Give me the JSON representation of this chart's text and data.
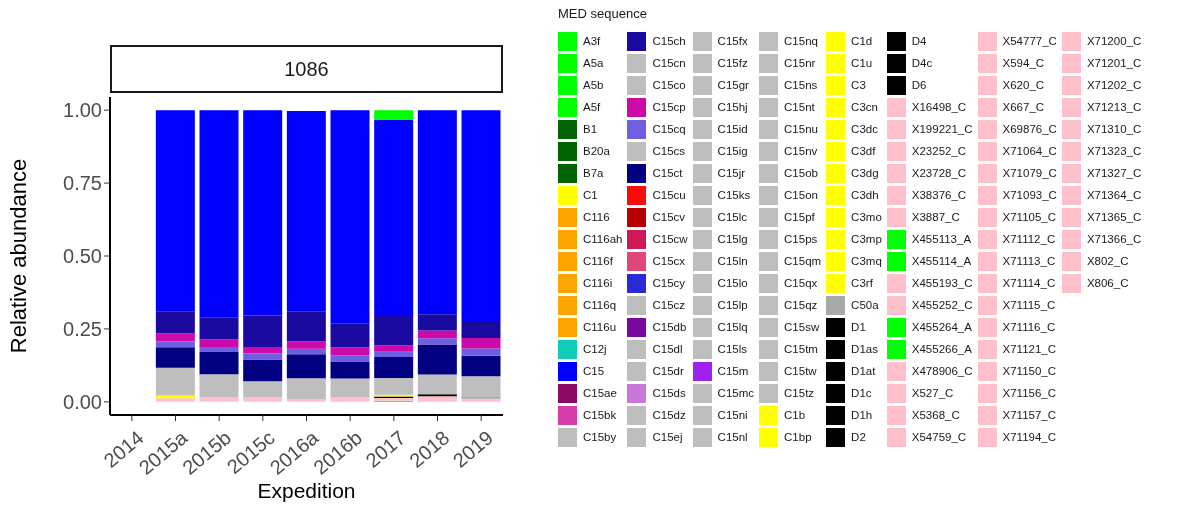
{
  "chart_data": {
    "type": "bar",
    "title": "1086",
    "xlabel": "Expedition",
    "ylabel": "Relative abundance",
    "legend_title": "MED sequence",
    "legend": "right",
    "stacked": true,
    "categories": [
      "2014",
      "2015a",
      "2015b",
      "2015c",
      "2016a",
      "2016b",
      "2017",
      "2018",
      "2019"
    ],
    "ylim": [
      -0.045,
      1.045
    ],
    "yticks": [
      {
        "value": 0,
        "label": "0.00"
      },
      0.25,
      {
        "value": 0.5,
        "label": "0.50"
      },
      0.75,
      {
        "value": 1,
        "label": "1.00"
      }
    ],
    "series": [
      {
        "name": "X806_C",
        "color": "#ffc0cb",
        "values": [
          null,
          null,
          null,
          null,
          null,
          null,
          null,
          null,
          null
        ]
      },
      {
        "name": "X802_C",
        "color": "#ffc0cb",
        "values": [
          null,
          null,
          null,
          null,
          null,
          null,
          null,
          null,
          null
        ]
      },
      {
        "name": "X71366_C",
        "color": "#ffc0cb",
        "values": [
          null,
          null,
          null,
          null,
          null,
          null,
          null,
          null,
          null
        ]
      },
      {
        "name": "X71365_C",
        "color": "#ffc0cb",
        "values": [
          null,
          null,
          null,
          null,
          null,
          null,
          null,
          null,
          null
        ]
      },
      {
        "name": "X71364_C",
        "color": "#ffc0cb",
        "values": [
          null,
          null,
          null,
          null,
          null,
          null,
          null,
          null,
          null
        ]
      },
      {
        "name": "X71327_C",
        "color": "#ffc0cb",
        "values": [
          null,
          null,
          null,
          null,
          null,
          null,
          null,
          null,
          null
        ]
      },
      {
        "name": "X71323_C",
        "color": "#ffc0cb",
        "values": [
          null,
          null,
          null,
          null,
          null,
          null,
          null,
          null,
          null
        ]
      },
      {
        "name": "X71310_C",
        "color": "#ffc0cb",
        "values": [
          null,
          null,
          null,
          null,
          null,
          null,
          null,
          null,
          null
        ]
      },
      {
        "name": "X71213_C",
        "color": "#ffc0cb",
        "values": [
          null,
          null,
          null,
          null,
          null,
          null,
          null,
          null,
          null
        ]
      },
      {
        "name": "X71202_C",
        "color": "#ffc0cb",
        "values": [
          null,
          null,
          null,
          null,
          null,
          null,
          null,
          null,
          null
        ]
      },
      {
        "name": "X71201_C",
        "color": "#ffc0cb",
        "values": [
          null,
          null,
          null,
          null,
          null,
          null,
          null,
          null,
          null
        ]
      },
      {
        "name": "X71200_C",
        "color": "#ffc0cb",
        "values": [
          null,
          null,
          null,
          null,
          null,
          null,
          null,
          null,
          null
        ]
      },
      {
        "name": "X71194_C",
        "color": "#ffc0cb",
        "values": [
          null,
          null,
          null,
          null,
          null,
          null,
          null,
          null,
          null
        ]
      },
      {
        "name": "X71157_C",
        "color": "#ffc0cb",
        "values": [
          null,
          null,
          null,
          null,
          null,
          null,
          null,
          null,
          null
        ]
      },
      {
        "name": "X71156_C",
        "color": "#ffc0cb",
        "values": [
          null,
          null,
          null,
          null,
          null,
          null,
          null,
          null,
          null
        ]
      },
      {
        "name": "X71150_C",
        "color": "#ffc0cb",
        "values": [
          null,
          null,
          null,
          null,
          null,
          null,
          null,
          null,
          null
        ]
      },
      {
        "name": "X71121_C",
        "color": "#ffc0cb",
        "values": [
          null,
          null,
          null,
          null,
          null,
          null,
          null,
          null,
          null
        ]
      },
      {
        "name": "X71116_C",
        "color": "#ffc0cb",
        "values": [
          null,
          null,
          null,
          null,
          null,
          null,
          null,
          null,
          null
        ]
      },
      {
        "name": "X71115_C",
        "color": "#ffc0cb",
        "values": [
          null,
          null,
          null,
          null,
          null,
          null,
          null,
          null,
          null
        ]
      },
      {
        "name": "X71114_C",
        "color": "#ffc0cb",
        "values": [
          null,
          null,
          null,
          null,
          null,
          null,
          null,
          null,
          null
        ]
      },
      {
        "name": "X71113_C",
        "color": "#ffc0cb",
        "values": [
          null,
          null,
          null,
          null,
          null,
          null,
          null,
          null,
          null
        ]
      },
      {
        "name": "X71112_C",
        "color": "#ffc0cb",
        "values": [
          null,
          null,
          null,
          null,
          null,
          null,
          null,
          null,
          null
        ]
      },
      {
        "name": "X71105_C",
        "color": "#ffc0cb",
        "values": [
          null,
          null,
          null,
          null,
          null,
          null,
          null,
          null,
          null
        ]
      },
      {
        "name": "X71093_C",
        "color": "#ffc0cb",
        "values": [
          null,
          null,
          null,
          null,
          null,
          null,
          null,
          null,
          null
        ]
      },
      {
        "name": "X71079_C",
        "color": "#ffc0cb",
        "values": [
          null,
          null,
          null,
          null,
          null,
          null,
          null,
          null,
          null
        ]
      },
      {
        "name": "X71064_C",
        "color": "#ffc0cb",
        "values": [
          null,
          null,
          null,
          null,
          null,
          null,
          null,
          null,
          null
        ]
      },
      {
        "name": "X69876_C",
        "color": "#ffc0cb",
        "values": [
          null,
          null,
          null,
          null,
          null,
          null,
          null,
          null,
          null
        ]
      },
      {
        "name": "X667_C",
        "color": "#ffc0cb",
        "values": [
          null,
          null,
          null,
          null,
          null,
          null,
          null,
          null,
          null
        ]
      },
      {
        "name": "X620_C",
        "color": "#ffc0cb",
        "values": [
          null,
          null,
          null,
          null,
          null,
          null,
          null,
          null,
          null
        ]
      },
      {
        "name": "X594_C",
        "color": "#ffc0cb",
        "values": [
          null,
          null,
          null,
          null,
          null,
          null,
          null,
          null,
          null
        ]
      },
      {
        "name": "X54777_C",
        "color": "#ffc0cb",
        "values": [
          null,
          null,
          null,
          null,
          null,
          null,
          null,
          null,
          null
        ]
      },
      {
        "name": "X54759_C",
        "color": "#ffc0cb",
        "values": [
          null,
          null,
          null,
          null,
          null,
          null,
          null,
          null,
          null
        ]
      },
      {
        "name": "X5368_C",
        "color": "#ffc0cb",
        "values": [
          null,
          null,
          null,
          null,
          null,
          null,
          null,
          null,
          null
        ]
      },
      {
        "name": "X527_C",
        "color": "#ffc0cb",
        "values": [
          null,
          null,
          null,
          null,
          null,
          null,
          null,
          null,
          null
        ]
      },
      {
        "name": "X478906_C",
        "color": "#ffc0cb",
        "values": [
          null,
          null,
          null,
          null,
          null,
          null,
          null,
          null,
          null
        ]
      },
      {
        "name": "X455266_A",
        "color": "#00ff00",
        "values": [
          null,
          null,
          null,
          null,
          null,
          null,
          null,
          null,
          null
        ]
      },
      {
        "name": "X455264_A",
        "color": "#00ff00",
        "values": [
          null,
          null,
          null,
          null,
          null,
          null,
          null,
          null,
          null
        ]
      },
      {
        "name": "X455252_C",
        "color": "#ffc0cb",
        "values": [
          null,
          null,
          null,
          null,
          null,
          null,
          null,
          null,
          null
        ]
      },
      {
        "name": "X455193_C",
        "color": "#ffc0cb",
        "values": [
          null,
          null,
          null,
          null,
          null,
          null,
          null,
          null,
          null
        ]
      },
      {
        "name": "X455114_A",
        "color": "#00ff00",
        "values": [
          null,
          null,
          null,
          null,
          null,
          null,
          null,
          null,
          null
        ]
      },
      {
        "name": "X455113_A",
        "color": "#00ff00",
        "values": [
          null,
          null,
          null,
          null,
          null,
          null,
          0.004,
          null,
          null
        ]
      },
      {
        "name": "X3887_C",
        "color": "#ffc0cb",
        "values": [
          null,
          null,
          null,
          null,
          null,
          null,
          null,
          null,
          null
        ]
      },
      {
        "name": "X38376_C",
        "color": "#ffc0cb",
        "values": [
          null,
          null,
          null,
          null,
          null,
          null,
          null,
          null,
          null
        ]
      },
      {
        "name": "X23728_C",
        "color": "#ffc0cb",
        "values": [
          null,
          null,
          null,
          null,
          null,
          null,
          null,
          null,
          null
        ]
      },
      {
        "name": "X23252_C",
        "color": "#ffc0cb",
        "values": [
          null,
          null,
          null,
          null,
          null,
          null,
          null,
          null,
          null
        ]
      },
      {
        "name": "X199221_C",
        "color": "#ffc0cb",
        "values": [
          null,
          null,
          null,
          null,
          null,
          null,
          null,
          null,
          null
        ]
      },
      {
        "name": "X16498_C",
        "color": "#ffc0cb",
        "values": [
          null,
          0.012,
          0.015,
          0.015,
          0.008,
          0.015,
          0.009,
          0.019,
          0.011
        ]
      },
      {
        "name": "D6",
        "color": "#000000",
        "values": [
          null,
          null,
          null,
          null,
          null,
          null,
          null,
          null,
          null
        ]
      },
      {
        "name": "D4c",
        "color": "#000000",
        "values": [
          null,
          null,
          null,
          null,
          null,
          null,
          null,
          null,
          null
        ]
      },
      {
        "name": "D4",
        "color": "#000000",
        "values": [
          null,
          null,
          null,
          null,
          null,
          null,
          null,
          null,
          null
        ]
      },
      {
        "name": "D2",
        "color": "#000000",
        "values": [
          null,
          null,
          null,
          null,
          null,
          null,
          null,
          null,
          null
        ]
      },
      {
        "name": "D1h",
        "color": "#000000",
        "values": [
          null,
          null,
          null,
          null,
          null,
          null,
          null,
          null,
          null
        ]
      },
      {
        "name": "D1c",
        "color": "#000000",
        "values": [
          null,
          null,
          null,
          null,
          null,
          null,
          null,
          null,
          null
        ]
      },
      {
        "name": "D1at",
        "color": "#000000",
        "values": [
          null,
          null,
          null,
          null,
          null,
          null,
          null,
          null,
          null
        ]
      },
      {
        "name": "D1as",
        "color": "#000000",
        "values": [
          null,
          null,
          null,
          null,
          null,
          null,
          null,
          null,
          null
        ]
      },
      {
        "name": "D1",
        "color": "#000000",
        "values": [
          null,
          null,
          null,
          null,
          null,
          null,
          0.005,
          0.007,
          null
        ]
      },
      {
        "name": "C50a",
        "color": "#a9a9a9",
        "values": [
          null,
          null,
          null,
          null,
          null,
          null,
          null,
          null,
          0.006
        ]
      },
      {
        "name": "C3rf",
        "color": "#ffff00",
        "values": [
          null,
          null,
          null,
          null,
          null,
          null,
          null,
          null,
          null
        ]
      },
      {
        "name": "C3mq",
        "color": "#ffff00",
        "values": [
          null,
          null,
          null,
          null,
          null,
          null,
          null,
          null,
          null
        ]
      },
      {
        "name": "C3mp",
        "color": "#ffff00",
        "values": [
          null,
          null,
          null,
          null,
          null,
          null,
          null,
          null,
          null
        ]
      },
      {
        "name": "C3mo",
        "color": "#ffff00",
        "values": [
          null,
          null,
          null,
          null,
          null,
          null,
          null,
          null,
          null
        ]
      },
      {
        "name": "C3dh",
        "color": "#ffff00",
        "values": [
          null,
          null,
          null,
          null,
          null,
          null,
          null,
          null,
          null
        ]
      },
      {
        "name": "C3dg",
        "color": "#ffff00",
        "values": [
          null,
          null,
          null,
          null,
          null,
          null,
          null,
          null,
          null
        ]
      },
      {
        "name": "C3df",
        "color": "#ffff00",
        "values": [
          null,
          null,
          null,
          null,
          null,
          null,
          null,
          null,
          null
        ]
      },
      {
        "name": "C3dc",
        "color": "#ffff00",
        "values": [
          null,
          null,
          null,
          null,
          null,
          null,
          null,
          null,
          null
        ]
      },
      {
        "name": "C3cn",
        "color": "#ffff00",
        "values": [
          null,
          null,
          null,
          null,
          null,
          null,
          null,
          null,
          null
        ]
      },
      {
        "name": "C3",
        "color": "#ffff00",
        "values": [
          null,
          0.01,
          null,
          null,
          null,
          null,
          0.006,
          null,
          null
        ]
      },
      {
        "name": "C1u",
        "color": "#ffff00",
        "values": [
          null,
          null,
          null,
          null,
          null,
          null,
          null,
          null,
          null
        ]
      },
      {
        "name": "C1d",
        "color": "#ffff00",
        "values": [
          null,
          null,
          null,
          null,
          null,
          null,
          null,
          null,
          null
        ]
      },
      {
        "name": "C1bp",
        "color": "#ffff00",
        "values": [
          null,
          null,
          null,
          null,
          null,
          null,
          null,
          null,
          null
        ]
      },
      {
        "name": "C1b",
        "color": "#ffff00",
        "values": [
          null,
          null,
          null,
          null,
          null,
          null,
          null,
          null,
          null
        ]
      },
      {
        "name": "C15tz",
        "color": "#bebebe",
        "values": [
          null,
          null,
          null,
          null,
          null,
          null,
          null,
          null,
          null
        ]
      },
      {
        "name": "C15tw",
        "color": "#bebebe",
        "values": [
          null,
          null,
          null,
          null,
          null,
          null,
          null,
          null,
          null
        ]
      },
      {
        "name": "C15tm",
        "color": "#bebebe",
        "values": [
          null,
          null,
          null,
          null,
          null,
          null,
          null,
          null,
          null
        ]
      },
      {
        "name": "C15sw",
        "color": "#bebebe",
        "values": [
          null,
          null,
          null,
          null,
          null,
          null,
          null,
          null,
          null
        ]
      },
      {
        "name": "C15qz",
        "color": "#bebebe",
        "values": [
          null,
          null,
          null,
          null,
          null,
          null,
          null,
          null,
          null
        ]
      },
      {
        "name": "C15qx",
        "color": "#bebebe",
        "values": [
          null,
          null,
          null,
          null,
          null,
          null,
          null,
          null,
          null
        ]
      },
      {
        "name": "C15qm",
        "color": "#bebebe",
        "values": [
          null,
          null,
          null,
          null,
          null,
          null,
          null,
          null,
          null
        ]
      },
      {
        "name": "C15ps",
        "color": "#bebebe",
        "values": [
          null,
          null,
          null,
          null,
          null,
          null,
          null,
          null,
          null
        ]
      },
      {
        "name": "C15pf",
        "color": "#bebebe",
        "values": [
          null,
          null,
          null,
          null,
          null,
          null,
          null,
          null,
          null
        ]
      },
      {
        "name": "C15on",
        "color": "#bebebe",
        "values": [
          null,
          null,
          null,
          null,
          null,
          null,
          null,
          null,
          null
        ]
      },
      {
        "name": "C15ob",
        "color": "#bebebe",
        "values": [
          null,
          null,
          null,
          null,
          null,
          null,
          null,
          null,
          null
        ]
      },
      {
        "name": "C15nv",
        "color": "#bebebe",
        "values": [
          null,
          null,
          null,
          null,
          null,
          null,
          null,
          null,
          null
        ]
      },
      {
        "name": "C15nu",
        "color": "#bebebe",
        "values": [
          null,
          null,
          null,
          null,
          null,
          null,
          null,
          null,
          null
        ]
      },
      {
        "name": "C15nt",
        "color": "#bebebe",
        "values": [
          null,
          null,
          null,
          null,
          null,
          null,
          null,
          null,
          null
        ]
      },
      {
        "name": "C15ns",
        "color": "#bebebe",
        "values": [
          null,
          null,
          null,
          null,
          null,
          null,
          null,
          null,
          null
        ]
      },
      {
        "name": "C15nr",
        "color": "#bebebe",
        "values": [
          null,
          null,
          null,
          null,
          null,
          null,
          null,
          null,
          null
        ]
      },
      {
        "name": "C15nq",
        "color": "#bebebe",
        "values": [
          null,
          null,
          null,
          null,
          null,
          null,
          null,
          null,
          null
        ]
      },
      {
        "name": "C15nl",
        "color": "#bebebe",
        "values": [
          null,
          null,
          null,
          null,
          null,
          null,
          null,
          null,
          null
        ]
      },
      {
        "name": "C15ni",
        "color": "#bebebe",
        "values": [
          null,
          null,
          null,
          null,
          null,
          null,
          null,
          null,
          null
        ]
      },
      {
        "name": "C15mc",
        "color": "#bebebe",
        "values": [
          null,
          null,
          null,
          null,
          null,
          null,
          null,
          null,
          null
        ]
      },
      {
        "name": "C15m",
        "color": "#a020f0",
        "values": [
          null,
          null,
          null,
          null,
          null,
          null,
          null,
          null,
          null
        ]
      },
      {
        "name": "C15ls",
        "color": "#bebebe",
        "values": [
          null,
          null,
          null,
          null,
          null,
          null,
          null,
          null,
          null
        ]
      },
      {
        "name": "C15lq",
        "color": "#bebebe",
        "values": [
          null,
          null,
          null,
          null,
          null,
          null,
          null,
          null,
          null
        ]
      },
      {
        "name": "C15lp",
        "color": "#bebebe",
        "values": [
          null,
          null,
          null,
          null,
          null,
          null,
          null,
          null,
          null
        ]
      },
      {
        "name": "C15lo",
        "color": "#bebebe",
        "values": [
          null,
          null,
          null,
          null,
          null,
          null,
          null,
          null,
          null
        ]
      },
      {
        "name": "C15ln",
        "color": "#bebebe",
        "values": [
          null,
          null,
          null,
          null,
          null,
          null,
          null,
          null,
          null
        ]
      },
      {
        "name": "C15lg",
        "color": "#bebebe",
        "values": [
          null,
          null,
          null,
          null,
          null,
          null,
          null,
          null,
          null
        ]
      },
      {
        "name": "C15lc",
        "color": "#bebebe",
        "values": [
          null,
          0.095,
          0.08,
          0.056,
          0.073,
          0.065,
          0.058,
          0.068,
          0.071
        ]
      },
      {
        "name": "C15ks",
        "color": "#bebebe",
        "values": [
          null,
          null,
          null,
          null,
          null,
          null,
          null,
          null,
          null
        ]
      },
      {
        "name": "C15jr",
        "color": "#bebebe",
        "values": [
          null,
          null,
          null,
          null,
          null,
          null,
          null,
          null,
          null
        ]
      },
      {
        "name": "C15ig",
        "color": "#bebebe",
        "values": [
          null,
          null,
          null,
          null,
          null,
          null,
          null,
          null,
          null
        ]
      },
      {
        "name": "C15id",
        "color": "#bebebe",
        "values": [
          null,
          null,
          null,
          null,
          null,
          null,
          null,
          null,
          null
        ]
      },
      {
        "name": "C15hj",
        "color": "#bebebe",
        "values": [
          null,
          null,
          null,
          null,
          null,
          null,
          null,
          null,
          null
        ]
      },
      {
        "name": "C15gr",
        "color": "#bebebe",
        "values": [
          null,
          null,
          null,
          null,
          null,
          null,
          null,
          null,
          null
        ]
      },
      {
        "name": "C15fz",
        "color": "#bebebe",
        "values": [
          null,
          null,
          null,
          null,
          null,
          null,
          null,
          null,
          null
        ]
      },
      {
        "name": "C15fx",
        "color": "#bebebe",
        "values": [
          null,
          null,
          null,
          null,
          null,
          null,
          null,
          null,
          null
        ]
      },
      {
        "name": "C15ej",
        "color": "#bebebe",
        "values": [
          null,
          null,
          null,
          null,
          null,
          null,
          null,
          null,
          null
        ]
      },
      {
        "name": "C15dz",
        "color": "#bebebe",
        "values": [
          null,
          null,
          null,
          null,
          null,
          null,
          null,
          null,
          null
        ]
      },
      {
        "name": "C15ds",
        "color": "#c878d8",
        "values": [
          null,
          null,
          null,
          null,
          null,
          null,
          null,
          null,
          null
        ]
      },
      {
        "name": "C15dr",
        "color": "#bebebe",
        "values": [
          null,
          null,
          null,
          null,
          null,
          null,
          null,
          null,
          null
        ]
      },
      {
        "name": "C15dl",
        "color": "#bebebe",
        "values": [
          null,
          null,
          null,
          null,
          null,
          null,
          null,
          null,
          null
        ]
      },
      {
        "name": "C15db",
        "color": "#7a08a0",
        "values": [
          null,
          null,
          null,
          null,
          null,
          null,
          null,
          null,
          null
        ]
      },
      {
        "name": "C15cz",
        "color": "#bebebe",
        "values": [
          null,
          null,
          null,
          null,
          null,
          null,
          null,
          null,
          null
        ]
      },
      {
        "name": "C15cy",
        "color": "#2a2ad6",
        "values": [
          null,
          null,
          null,
          null,
          null,
          null,
          null,
          null,
          null
        ]
      },
      {
        "name": "C15cx",
        "color": "#e0467a",
        "values": [
          null,
          null,
          null,
          null,
          null,
          null,
          null,
          null,
          null
        ]
      },
      {
        "name": "C15cw",
        "color": "#cf1856",
        "values": [
          null,
          null,
          null,
          null,
          null,
          null,
          null,
          null,
          null
        ]
      },
      {
        "name": "C15cv",
        "color": "#b40000",
        "values": [
          null,
          null,
          null,
          null,
          null,
          null,
          null,
          null,
          null
        ]
      },
      {
        "name": "C15cu",
        "color": "#ff0a0a",
        "values": [
          null,
          null,
          null,
          null,
          null,
          null,
          null,
          null,
          null
        ]
      },
      {
        "name": "C15ct",
        "color": "#000080",
        "values": [
          null,
          0.07,
          0.076,
          0.074,
          0.082,
          0.057,
          0.072,
          0.103,
          0.07
        ]
      },
      {
        "name": "C15cs",
        "color": "#bebebe",
        "values": [
          null,
          null,
          null,
          null,
          null,
          null,
          null,
          null,
          null
        ]
      },
      {
        "name": "C15cq",
        "color": "#6e5ee0",
        "values": [
          null,
          0.02,
          0.017,
          0.021,
          0.019,
          0.022,
          0.018,
          0.021,
          0.025
        ]
      },
      {
        "name": "C15cp",
        "color": "#cc0aaa",
        "values": [
          null,
          0.028,
          0.026,
          0.022,
          0.025,
          0.027,
          0.021,
          0.027,
          0.036
        ]
      },
      {
        "name": "C15co",
        "color": "#bebebe",
        "values": [
          null,
          null,
          null,
          null,
          null,
          null,
          null,
          null,
          null
        ]
      },
      {
        "name": "C15cn",
        "color": "#bebebe",
        "values": [
          null,
          null,
          null,
          null,
          null,
          null,
          null,
          null,
          null
        ]
      },
      {
        "name": "C15ch",
        "color": "#1a0aa0",
        "values": [
          null,
          0.074,
          0.074,
          0.108,
          0.104,
          0.082,
          0.105,
          0.055,
          0.055
        ]
      },
      {
        "name": "C15by",
        "color": "#bebebe",
        "values": [
          null,
          null,
          null,
          null,
          null,
          null,
          null,
          null,
          null
        ]
      },
      {
        "name": "C15bk",
        "color": "#d63ca8",
        "values": [
          null,
          null,
          null,
          null,
          null,
          null,
          null,
          null,
          null
        ]
      },
      {
        "name": "C15ae",
        "color": "#8b0a64",
        "values": [
          null,
          null,
          null,
          null,
          null,
          null,
          null,
          null,
          null
        ]
      },
      {
        "name": "C15",
        "color": "#0000ff",
        "values": [
          null,
          0.691,
          0.712,
          0.704,
          0.686,
          0.732,
          0.668,
          0.7,
          0.726
        ]
      },
      {
        "name": "C12j",
        "color": "#10ccb8",
        "values": [
          null,
          null,
          null,
          null,
          null,
          null,
          null,
          null,
          null
        ]
      },
      {
        "name": "C116u",
        "color": "#ffa500",
        "values": [
          null,
          null,
          null,
          null,
          null,
          null,
          null,
          null,
          null
        ]
      },
      {
        "name": "C116q",
        "color": "#ffa500",
        "values": [
          null,
          null,
          null,
          null,
          null,
          null,
          null,
          null,
          null
        ]
      },
      {
        "name": "C116i",
        "color": "#ffa500",
        "values": [
          null,
          null,
          null,
          null,
          null,
          null,
          null,
          null,
          null
        ]
      },
      {
        "name": "C116f",
        "color": "#ffa500",
        "values": [
          null,
          null,
          null,
          null,
          null,
          null,
          null,
          null,
          null
        ]
      },
      {
        "name": "C116ah",
        "color": "#ffa500",
        "values": [
          null,
          null,
          null,
          null,
          null,
          null,
          null,
          null,
          null
        ]
      },
      {
        "name": "C116",
        "color": "#ffa500",
        "values": [
          null,
          null,
          null,
          null,
          null,
          null,
          null,
          null,
          null
        ]
      },
      {
        "name": "C1",
        "color": "#ffff00",
        "values": [
          null,
          null,
          null,
          null,
          null,
          null,
          null,
          null,
          null
        ]
      },
      {
        "name": "B7a",
        "color": "#006400",
        "values": [
          null,
          null,
          null,
          null,
          null,
          null,
          null,
          null,
          null
        ]
      },
      {
        "name": "B20a",
        "color": "#006400",
        "values": [
          null,
          null,
          null,
          null,
          null,
          null,
          null,
          null,
          null
        ]
      },
      {
        "name": "B1",
        "color": "#006400",
        "values": [
          null,
          null,
          null,
          null,
          null,
          null,
          null,
          null,
          null
        ]
      },
      {
        "name": "A5f",
        "color": "#00ff00",
        "values": [
          null,
          null,
          null,
          null,
          null,
          null,
          null,
          null,
          null
        ]
      },
      {
        "name": "A5b",
        "color": "#00ff00",
        "values": [
          null,
          null,
          null,
          null,
          null,
          null,
          null,
          null,
          null
        ]
      },
      {
        "name": "A5a",
        "color": "#00ff00",
        "values": [
          null,
          null,
          null,
          null,
          null,
          null,
          null,
          null,
          null
        ]
      },
      {
        "name": "A3f",
        "color": "#00ff00",
        "values": [
          null,
          null,
          null,
          null,
          null,
          null,
          0.034,
          null,
          null
        ]
      }
    ]
  }
}
